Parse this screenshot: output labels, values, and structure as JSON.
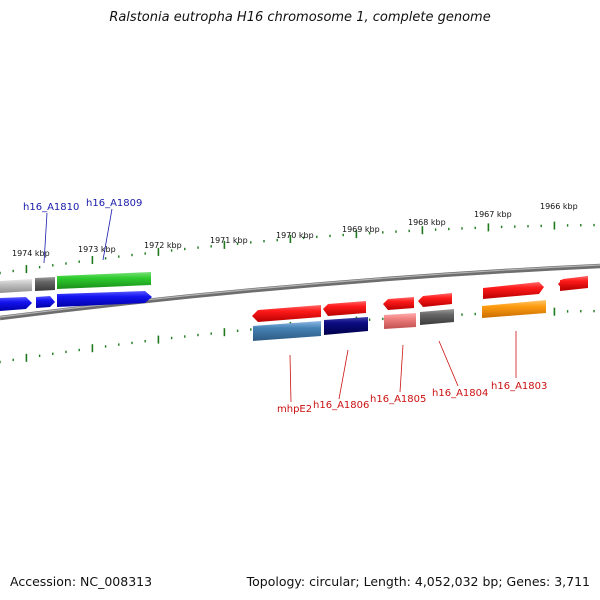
{
  "title": "Ralstonia eutropha H16 chromosome 1, complete genome",
  "footer": {
    "accession": "Accession: NC_008313",
    "topology": "Topology: circular; Length: 4,052,032 bp; Genes: 3,711"
  },
  "colors": {
    "backbone": "#7d7d7d",
    "ticks": "#1f7a1f",
    "label_forward": "#1a1aaa",
    "label_reverse": "#cc1111"
  },
  "kbp_markers": [
    "1974 kbp",
    "1973 kbp",
    "1972 kbp",
    "1971 kbp",
    "1970 kbp",
    "1969 kbp",
    "1968 kbp",
    "1967 kbp",
    "1966 kbp"
  ],
  "gene_labels_top": [
    {
      "label": "h16_A1810"
    },
    {
      "label": "h16_A1809"
    }
  ],
  "gene_labels_bottom": [
    {
      "label": "mhpE2"
    },
    {
      "label": "h16_A1806"
    },
    {
      "label": "h16_A1805"
    },
    {
      "label": "h16_A1804"
    },
    {
      "label": "h16_A1803"
    }
  ]
}
